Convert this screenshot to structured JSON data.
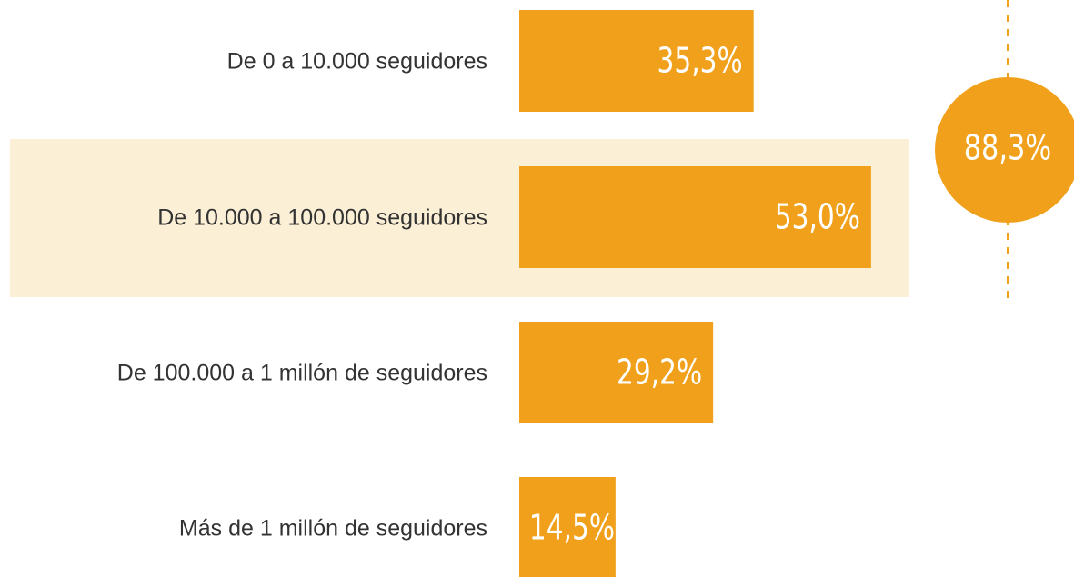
{
  "chart_data": {
    "type": "barh",
    "categories": [
      "De 0 a 10.000 seguidores",
      "De 10.000 a 100.000 seguidores",
      "De 100.000 a 1 millón de seguidores",
      "Más de 1 millón de seguidores"
    ],
    "values": [
      35.3,
      53.0,
      29.2,
      14.5
    ],
    "value_labels": [
      "35,3%",
      "53,0%",
      "29,2%",
      "14,5%"
    ],
    "color": "#f0a01a",
    "highlight": 1,
    "highlight_color": "#fbefd6",
    "annotation": "88,3%"
  }
}
